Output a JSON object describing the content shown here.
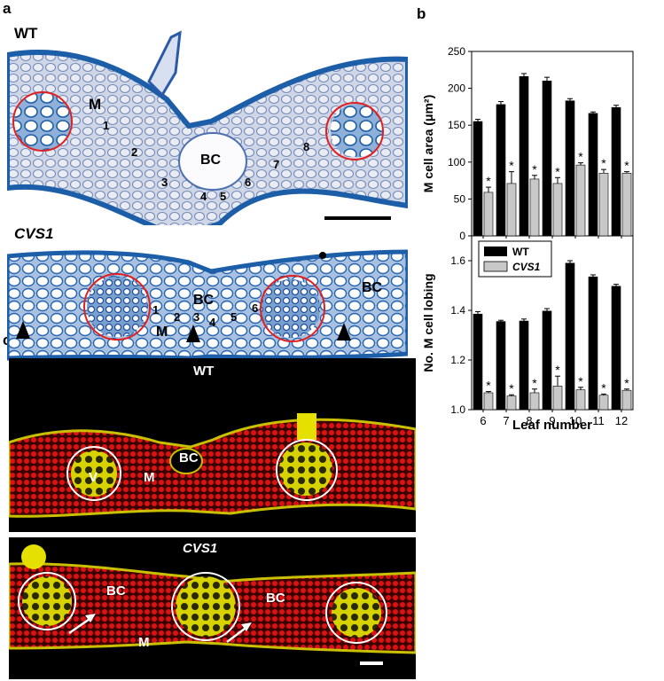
{
  "panel_labels": {
    "a": "a",
    "b": "b",
    "c": "c"
  },
  "panel_a": {
    "wt_label": "WT",
    "cvs1_label": "CVS1",
    "wt_annotations": {
      "m": "M",
      "bc": "BC",
      "numbers": [
        "1",
        "2",
        "3",
        "4",
        "5",
        "6",
        "7",
        "8"
      ]
    },
    "cvs1_annotations": {
      "bc_center": "BC",
      "bc_right": "BC",
      "m": "M",
      "numbers": [
        "1",
        "2",
        "3",
        "4",
        "5",
        "6"
      ]
    }
  },
  "panel_c": {
    "wt_label": "WT",
    "cvs1_label": "CVS1",
    "wt_annotations": {
      "v": "V",
      "m": "M",
      "bc": "BC"
    },
    "cvs1_annotations": {
      "bc_left": "BC",
      "bc_right": "BC",
      "m": "M"
    }
  },
  "chart_data": [
    {
      "type": "bar",
      "ylabel": "M cell area (μm²)",
      "xlabel": "",
      "categories": [
        "6",
        "7",
        "8",
        "9",
        "10",
        "11",
        "12"
      ],
      "ylim": [
        0,
        250
      ],
      "yticks": [
        "0",
        "50",
        "100",
        "150",
        "200",
        "250"
      ],
      "series": [
        {
          "name": "WT",
          "values": [
            155,
            178,
            216,
            210,
            183,
            166,
            174
          ],
          "errors": [
            3,
            4,
            4,
            5,
            3,
            2,
            3
          ],
          "color": "#000000"
        },
        {
          "name": "CVS1",
          "values": [
            59,
            71,
            77,
            71,
            96,
            85,
            85
          ],
          "errors": [
            7,
            16,
            5,
            8,
            3,
            5,
            2
          ],
          "color": "#c8c8c8"
        }
      ],
      "significance": [
        "*",
        "*",
        "*",
        "*",
        "*",
        "*",
        "*"
      ]
    },
    {
      "type": "bar",
      "ylabel": "No. M cell lobing",
      "xlabel": "Leaf number",
      "categories": [
        "6",
        "7",
        "8",
        "9",
        "10",
        "11",
        "12"
      ],
      "ylim": [
        1.0,
        1.7
      ],
      "yticks": [
        "1.0",
        "1.2",
        "1.4",
        "1.6"
      ],
      "legend": {
        "placement": "top-left",
        "entries": [
          "WT",
          "CVS1"
        ]
      },
      "series": [
        {
          "name": "WT",
          "values": [
            1.385,
            1.355,
            1.357,
            1.397,
            1.59,
            1.535,
            1.497
          ],
          "errors": [
            0.01,
            0.005,
            0.008,
            0.01,
            0.01,
            0.008,
            0.008
          ],
          "color": "#000000"
        },
        {
          "name": "CVS1",
          "values": [
            1.068,
            1.055,
            1.068,
            1.095,
            1.08,
            1.058,
            1.078
          ],
          "errors": [
            0.005,
            0.005,
            0.015,
            0.04,
            0.01,
            0.005,
            0.005
          ],
          "color": "#c8c8c8"
        }
      ],
      "significance": [
        "*",
        "*",
        "*",
        "*",
        "*",
        "*",
        "*"
      ]
    }
  ]
}
